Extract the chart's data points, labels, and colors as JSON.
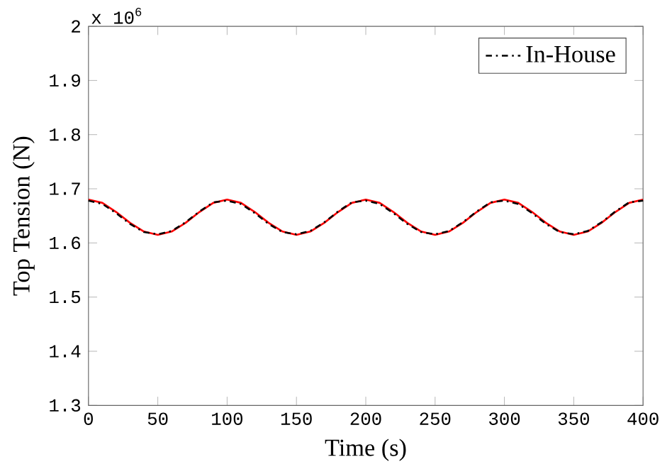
{
  "chart_data": {
    "type": "line",
    "xlabel": "Time (s)",
    "ylabel": "Top Tension (N)",
    "annotations": [
      "x 10$^{6}$"
    ],
    "x": [
      0,
      10,
      20,
      30,
      40,
      50,
      60,
      70,
      80,
      90,
      100,
      110,
      120,
      130,
      140,
      150,
      160,
      170,
      180,
      190,
      200,
      210,
      220,
      230,
      240,
      250,
      260,
      270,
      280,
      290,
      300,
      310,
      320,
      330,
      340,
      350,
      360,
      370,
      380,
      390,
      400
    ],
    "series": [
      {
        "color": "#ff0000",
        "line_style": "solid",
        "values": [
          1.68,
          1.674,
          1.657,
          1.637,
          1.621,
          1.615,
          1.621,
          1.637,
          1.657,
          1.674,
          1.68,
          1.674,
          1.657,
          1.637,
          1.621,
          1.615,
          1.621,
          1.637,
          1.657,
          1.674,
          1.68,
          1.674,
          1.657,
          1.637,
          1.621,
          1.615,
          1.621,
          1.637,
          1.657,
          1.674,
          1.68,
          1.674,
          1.657,
          1.637,
          1.621,
          1.615,
          1.621,
          1.637,
          1.657,
          1.674,
          1.68
        ]
      },
      {
        "name": "In-House",
        "color": "#000000",
        "line_style": "dashdotted",
        "values": [
          1.678,
          1.672,
          1.655,
          1.635,
          1.62,
          1.616,
          1.622,
          1.638,
          1.658,
          1.675,
          1.678,
          1.672,
          1.655,
          1.635,
          1.62,
          1.616,
          1.622,
          1.638,
          1.658,
          1.675,
          1.678,
          1.672,
          1.655,
          1.635,
          1.62,
          1.616,
          1.622,
          1.638,
          1.658,
          1.675,
          1.678,
          1.672,
          1.655,
          1.635,
          1.62,
          1.616,
          1.622,
          1.638,
          1.658,
          1.675,
          1.678
        ]
      }
    ],
    "xlim": [
      0,
      400
    ],
    "ylim": [
      1.3,
      2
    ],
    "xticks": [
      0,
      50,
      100,
      150,
      200,
      250,
      300,
      350,
      400
    ],
    "yticks": [
      1.3,
      1.4,
      1.5,
      1.6,
      1.7,
      1.8,
      1.9,
      2
    ],
    "legend": "top right",
    "grid": false
  }
}
